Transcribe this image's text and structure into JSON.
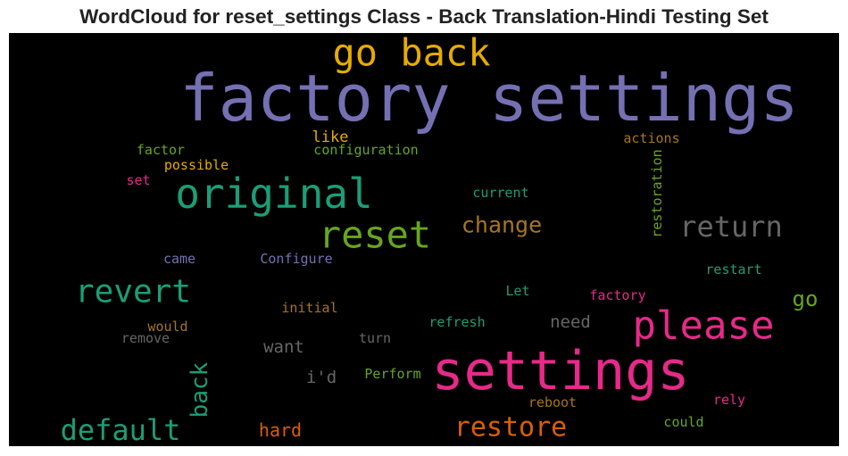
{
  "chart_data": {
    "type": "wordcloud",
    "title": "WordCloud for reset_settings Class - Back Translation-Hindi Testing Set",
    "background": "#000000",
    "words": [
      {
        "text": "factory settings",
        "size": 72,
        "color": "#7570b3",
        "rotate": 0
      },
      {
        "text": "settings",
        "size": 60,
        "color": "#e7298a",
        "rotate": 0
      },
      {
        "text": "go back",
        "size": 42,
        "color": "#e6ab02",
        "rotate": 0
      },
      {
        "text": "original",
        "size": 46,
        "color": "#1b9e77",
        "rotate": 0
      },
      {
        "text": "please",
        "size": 44,
        "color": "#e7298a",
        "rotate": 0
      },
      {
        "text": "reset",
        "size": 42,
        "color": "#66a61e",
        "rotate": 0
      },
      {
        "text": "revert",
        "size": 36,
        "color": "#1b9e77",
        "rotate": 0
      },
      {
        "text": "return",
        "size": 32,
        "color": "#666666",
        "rotate": 0
      },
      {
        "text": "default",
        "size": 32,
        "color": "#1b9e77",
        "rotate": 0
      },
      {
        "text": "restore",
        "size": 30,
        "color": "#d95f02",
        "rotate": 0
      },
      {
        "text": "back",
        "size": 26,
        "color": "#1b9e77",
        "rotate": -90
      },
      {
        "text": "change",
        "size": 25,
        "color": "#a6761d",
        "rotate": 0
      },
      {
        "text": "go",
        "size": 24,
        "color": "#66a61e",
        "rotate": 0
      },
      {
        "text": "hard",
        "size": 20,
        "color": "#d95f02",
        "rotate": 0
      },
      {
        "text": "want",
        "size": 19,
        "color": "#666666",
        "rotate": 0
      },
      {
        "text": "need",
        "size": 19,
        "color": "#666666",
        "rotate": 0
      },
      {
        "text": "i'd",
        "size": 19,
        "color": "#666666",
        "rotate": 0
      },
      {
        "text": "like",
        "size": 17,
        "color": "#e6ab02",
        "rotate": 0
      },
      {
        "text": "restoration",
        "size": 15,
        "color": "#66a61e",
        "rotate": -90
      },
      {
        "text": "actions",
        "size": 15,
        "color": "#a6761d",
        "rotate": 0
      },
      {
        "text": "factor",
        "size": 15,
        "color": "#66a61e",
        "rotate": 0
      },
      {
        "text": "configuration",
        "size": 15,
        "color": "#66a61e",
        "rotate": 0
      },
      {
        "text": "possible",
        "size": 15,
        "color": "#e6ab02",
        "rotate": 0
      },
      {
        "text": "set",
        "size": 15,
        "color": "#e7298a",
        "rotate": 0
      },
      {
        "text": "current",
        "size": 15,
        "color": "#1b9e77",
        "rotate": 0
      },
      {
        "text": "came",
        "size": 15,
        "color": "#7570b3",
        "rotate": 0
      },
      {
        "text": "Configure",
        "size": 15,
        "color": "#7570b3",
        "rotate": 0
      },
      {
        "text": "restart",
        "size": 15,
        "color": "#1b9e77",
        "rotate": 0
      },
      {
        "text": "Let",
        "size": 15,
        "color": "#1b9e77",
        "rotate": 0
      },
      {
        "text": "factory",
        "size": 15,
        "color": "#e7298a",
        "rotate": 0
      },
      {
        "text": "initial",
        "size": 15,
        "color": "#a6761d",
        "rotate": 0
      },
      {
        "text": "refresh",
        "size": 15,
        "color": "#1b9e77",
        "rotate": 0
      },
      {
        "text": "would",
        "size": 15,
        "color": "#a6761d",
        "rotate": 0
      },
      {
        "text": "remove",
        "size": 15,
        "color": "#666666",
        "rotate": 0
      },
      {
        "text": "turn",
        "size": 15,
        "color": "#666666",
        "rotate": 0
      },
      {
        "text": "Perform",
        "size": 15,
        "color": "#66a61e",
        "rotate": 0
      },
      {
        "text": "reboot",
        "size": 15,
        "color": "#a6761d",
        "rotate": 0
      },
      {
        "text": "rely",
        "size": 15,
        "color": "#e7298a",
        "rotate": 0
      },
      {
        "text": "could",
        "size": 15,
        "color": "#66a61e",
        "rotate": 0
      }
    ]
  }
}
